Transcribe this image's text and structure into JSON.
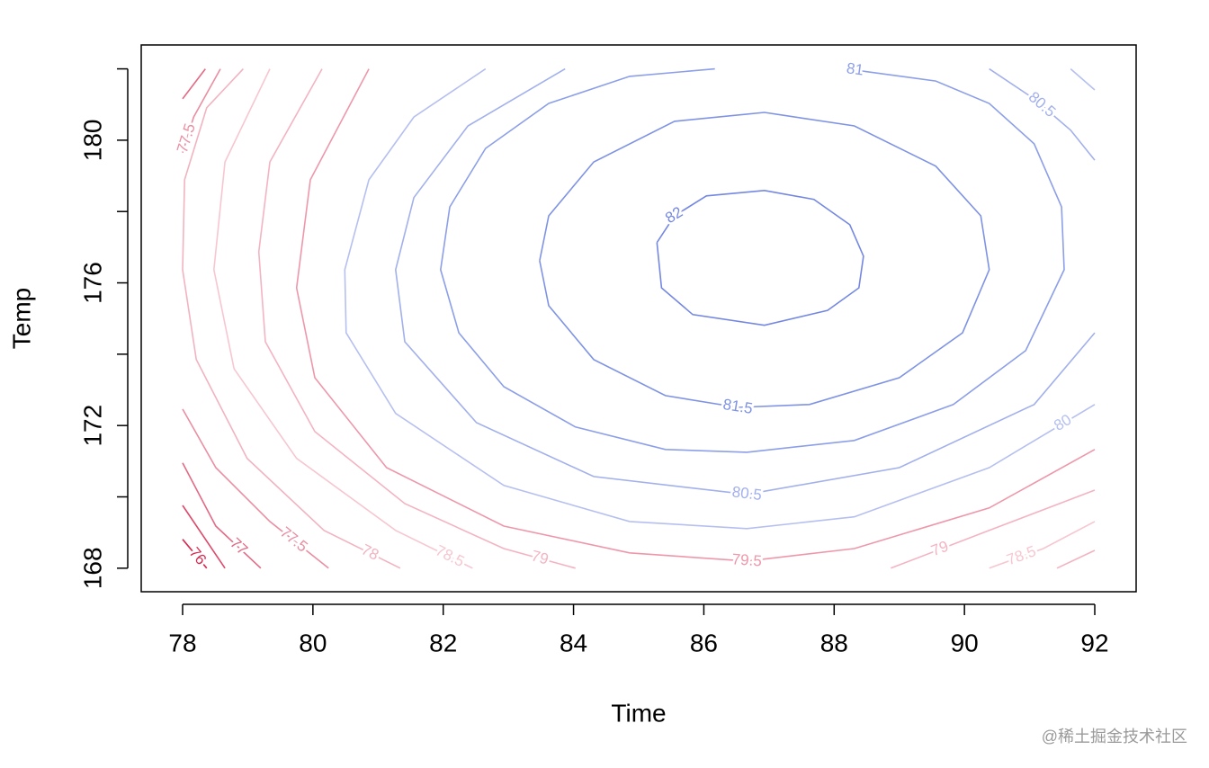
{
  "chart_data": {
    "type": "contour",
    "xlabel": "Time",
    "ylabel": "Temp",
    "xlim": [
      77.365,
      92.635
    ],
    "ylim": [
      167.34,
      182.67
    ],
    "xticks": [
      78,
      80,
      82,
      84,
      86,
      88,
      90,
      92
    ],
    "yticks": [
      168,
      172,
      176,
      180
    ],
    "yminorticks": [
      170,
      174,
      178,
      182
    ],
    "watermark": "@稀土掘金技术社区",
    "contours": [
      {
        "level": 76,
        "color": "#d62a50",
        "x": [
          78.37,
          78
        ],
        "y": [
          168,
          168.81
        ]
      },
      {
        "level": 76.5,
        "color": "#dd4a69",
        "x": [
          78.65,
          78
        ],
        "y": [
          168,
          169.76
        ]
      },
      {
        "level": 77,
        "color": "#e36a84",
        "x": [
          79.2,
          78.51,
          78,
          null,
          78,
          78.35
        ],
        "y": [
          168,
          169.18,
          170.95,
          null,
          181.16,
          182
        ]
      },
      {
        "level": 77.5,
        "color": "#ea8ea2",
        "x": [
          80.24,
          79.34,
          78.51,
          78,
          null,
          78,
          78.17,
          78.58
        ],
        "y": [
          168,
          169.31,
          170.82,
          172.46,
          null,
          179.65,
          180.65,
          182
        ]
      },
      {
        "level": 78,
        "color": "#f2b3c0",
        "x": [
          92,
          91.42,
          null,
          81.34,
          80.17,
          78.99,
          78.21,
          78,
          78.03,
          78.37,
          78.93
        ],
        "y": [
          168.5,
          168,
          null,
          168,
          169.06,
          171.08,
          173.85,
          176.37,
          178.89,
          180.91,
          182
        ]
      },
      {
        "level": 78.5,
        "color": "#f7c6d0",
        "x": [
          92,
          91.21,
          90.38,
          null,
          82.45,
          81.27,
          79.75,
          78.79,
          78.48,
          78.65,
          79.34
        ],
        "y": [
          169.31,
          168.55,
          168,
          null,
          168,
          169.06,
          171.08,
          173.59,
          176.37,
          179.39,
          182
        ]
      },
      {
        "level": 79,
        "color": "#f4b3c2",
        "x": [
          92,
          90.38,
          88.87,
          null,
          84.03,
          82.93,
          81.41,
          80.03,
          79.27,
          79.17,
          79.34,
          80.14
        ],
        "y": [
          170.19,
          169.06,
          168,
          null,
          168,
          168.55,
          169.81,
          171.83,
          174.35,
          176.87,
          179.39,
          182
        ]
      },
      {
        "level": 79.5,
        "color": "#ee97ab",
        "x": [
          92,
          90.38,
          88.31,
          86.66,
          84.86,
          82.93,
          81.13,
          80.03,
          79.75,
          79.96,
          80.86
        ],
        "y": [
          171.33,
          169.69,
          168.55,
          168.2,
          168.43,
          169.18,
          170.82,
          173.34,
          175.86,
          178.89,
          182
        ]
      },
      {
        "level": 80,
        "color": "#b6c0f0",
        "x": [
          91.63,
          92,
          null,
          92,
          90.38,
          88.31,
          86.66,
          84.86,
          82.93,
          81.27,
          80.51,
          80.49,
          80.86,
          81.55,
          82.65
        ],
        "y": [
          182,
          181.41,
          null,
          172.59,
          170.82,
          169.44,
          169.11,
          169.31,
          170.32,
          172.34,
          174.6,
          176.37,
          178.89,
          180.65,
          182
        ]
      },
      {
        "level": 80.5,
        "color": "#a2b0ec",
        "x": [
          90.38,
          91.07,
          91.63,
          92,
          null,
          92,
          91.07,
          89,
          86.66,
          84.31,
          82.51,
          81.41,
          81.27,
          81.55,
          82.38,
          83.87
        ],
        "y": [
          182,
          181.16,
          180.28,
          179.44,
          null,
          174.6,
          172.59,
          170.82,
          170.07,
          170.57,
          172.08,
          174.35,
          176.37,
          178.39,
          180.4,
          182
        ]
      },
      {
        "level": 81,
        "color": "#8c9fe8",
        "x": [
          86.17,
          84.86,
          83.62,
          82.65,
          82.1,
          81.96,
          82.24,
          82.93,
          84.03,
          85.41,
          86.66,
          88.31,
          89.83,
          90.94,
          91.53,
          91.49,
          91.07,
          90.38,
          89.56,
          88.18
        ],
        "y": [
          182,
          181.79,
          181.03,
          179.77,
          178.13,
          176.37,
          174.6,
          173.09,
          171.96,
          171.33,
          171.25,
          171.58,
          172.59,
          174.1,
          176.37,
          178.13,
          179.9,
          181.03,
          181.66,
          182
        ]
      },
      {
        "level": 81.5,
        "color": "#7f93e4",
        "x": [
          83.48,
          83.62,
          84.31,
          85.55,
          86.93,
          88.31,
          89.56,
          90.25,
          90.38,
          89.97,
          89,
          87.62,
          86.52,
          85.41,
          84.31,
          83.62,
          83.48
        ],
        "y": [
          176.62,
          177.88,
          179.39,
          180.53,
          180.78,
          180.4,
          179.27,
          177.88,
          176.37,
          174.6,
          173.34,
          172.59,
          172.51,
          172.84,
          173.85,
          175.36,
          176.62
        ]
      },
      {
        "level": 82,
        "color": "#7488e2",
        "x": [
          85.28,
          85.55,
          86.04,
          86.93,
          87.69,
          88.24,
          88.45,
          88.38,
          87.9,
          86.93,
          85.83,
          85.35,
          85.28
        ],
        "y": [
          177.13,
          177.88,
          178.44,
          178.59,
          178.34,
          177.63,
          176.75,
          175.86,
          175.23,
          174.81,
          175.11,
          175.86,
          177.13
        ]
      }
    ]
  }
}
